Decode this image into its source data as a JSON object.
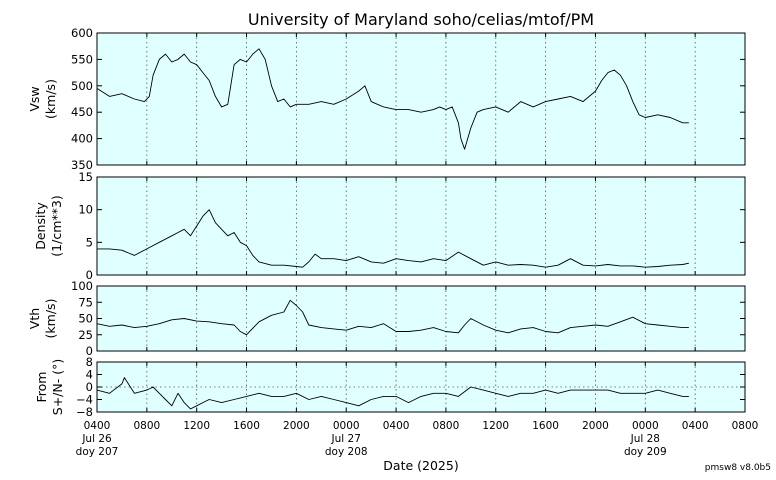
{
  "title": "University of Maryland  soho/celias/mtof/PM",
  "xlabel": "Date (2025)",
  "footer": "pmsw8 v8.0b5",
  "colors": {
    "panel_bg": "#e0ffff",
    "line": "#000000",
    "grid": "#555555"
  },
  "x_ticks": [
    {
      "t": 0,
      "lines": [
        "0400",
        "Jul 26",
        "doy 207"
      ]
    },
    {
      "t": 4,
      "lines": [
        "0800"
      ]
    },
    {
      "t": 8,
      "lines": [
        "1200"
      ]
    },
    {
      "t": 12,
      "lines": [
        "1600"
      ]
    },
    {
      "t": 16,
      "lines": [
        "2000"
      ]
    },
    {
      "t": 20,
      "lines": [
        "0000",
        "Jul 27",
        "doy 208"
      ]
    },
    {
      "t": 24,
      "lines": [
        "0400"
      ]
    },
    {
      "t": 28,
      "lines": [
        "0800"
      ]
    },
    {
      "t": 32,
      "lines": [
        "1200"
      ]
    },
    {
      "t": 36,
      "lines": [
        "1600"
      ]
    },
    {
      "t": 40,
      "lines": [
        "2000"
      ]
    },
    {
      "t": 44,
      "lines": [
        "0000",
        "Jul 28",
        "doy 209"
      ]
    },
    {
      "t": 48,
      "lines": [
        "0400"
      ]
    },
    {
      "t": 52,
      "lines": [
        "0800"
      ]
    }
  ],
  "chart_data": [
    {
      "type": "line",
      "id": "vsw",
      "ylabel": [
        "Vsw",
        "(km/s)"
      ],
      "ylim": [
        350,
        600
      ],
      "yticks": [
        350,
        400,
        450,
        500,
        550,
        600
      ],
      "xlim_hours_from_0400_jul26": [
        0,
        52
      ],
      "grid": "dotted vertical",
      "x": [
        0,
        1,
        2,
        3,
        3.8,
        4.2,
        4.5,
        5,
        5.5,
        6,
        6.5,
        7,
        7.5,
        8,
        8.5,
        9,
        9.5,
        10,
        10.5,
        11,
        11.5,
        12,
        12.5,
        13,
        13.5,
        14,
        14.5,
        15,
        15.5,
        16,
        17,
        18,
        19,
        20,
        21,
        21.5,
        22,
        22.5,
        23,
        24,
        25,
        26,
        27,
        27.5,
        28,
        28.5,
        29,
        29.2,
        29.5,
        30,
        30.5,
        31,
        32,
        33,
        34,
        35,
        36,
        37,
        38,
        39,
        40,
        40.5,
        41,
        41.5,
        42,
        42.5,
        43,
        43.5,
        44,
        45,
        46,
        47,
        47.5
      ],
      "values": [
        495,
        480,
        485,
        475,
        470,
        480,
        520,
        550,
        560,
        545,
        550,
        560,
        545,
        540,
        525,
        510,
        480,
        460,
        465,
        540,
        550,
        545,
        560,
        570,
        550,
        500,
        470,
        475,
        460,
        465,
        465,
        470,
        465,
        475,
        490,
        500,
        470,
        465,
        460,
        455,
        455,
        450,
        455,
        460,
        455,
        460,
        430,
        400,
        380,
        420,
        450,
        455,
        460,
        450,
        470,
        460,
        470,
        475,
        480,
        470,
        490,
        510,
        525,
        530,
        520,
        500,
        470,
        445,
        440,
        445,
        440,
        430,
        430
      ]
    },
    {
      "type": "line",
      "id": "density",
      "ylabel": [
        "Density",
        "(1/cm**3)"
      ],
      "ylim": [
        0,
        15
      ],
      "yticks": [
        0,
        5,
        10,
        15
      ],
      "xlim_hours_from_0400_jul26": [
        0,
        52
      ],
      "grid": "dotted vertical",
      "x": [
        0,
        1,
        2,
        3,
        4,
        5,
        6,
        6.5,
        7,
        7.5,
        8,
        8.5,
        9,
        9.5,
        10,
        10.5,
        11,
        11.5,
        12,
        12.5,
        13,
        14,
        15,
        16,
        16.5,
        17,
        17.5,
        18,
        19,
        20,
        21,
        22,
        23,
        24,
        25,
        26,
        27,
        28,
        29,
        30,
        31,
        32,
        33,
        34,
        35,
        36,
        37,
        38,
        39,
        40,
        41,
        42,
        43,
        44,
        45,
        46,
        47,
        47.5
      ],
      "values": [
        4,
        4,
        3.8,
        3,
        4,
        5,
        6,
        6.5,
        7,
        6,
        7.5,
        9,
        10,
        8,
        7,
        6,
        6.5,
        5,
        4.5,
        3,
        2,
        1.5,
        1.5,
        1.3,
        1.2,
        2,
        3.2,
        2.5,
        2.5,
        2.2,
        2.8,
        2,
        1.8,
        2.5,
        2.2,
        2,
        2.5,
        2.2,
        3.5,
        2.5,
        1.5,
        2,
        1.5,
        1.6,
        1.5,
        1.2,
        1.5,
        2.5,
        1.5,
        1.4,
        1.6,
        1.4,
        1.4,
        1.2,
        1.3,
        1.5,
        1.6,
        1.8
      ]
    },
    {
      "type": "line",
      "id": "vth",
      "ylabel": [
        "Vth",
        "(km/s)"
      ],
      "ylim": [
        0,
        100
      ],
      "yticks": [
        0,
        25,
        50,
        75,
        100
      ],
      "xlim_hours_from_0400_jul26": [
        0,
        52
      ],
      "grid": "dotted vertical",
      "x": [
        0,
        1,
        2,
        3,
        4,
        5,
        6,
        7,
        8,
        9,
        10,
        11,
        11.5,
        12,
        13,
        14,
        15,
        15.5,
        16,
        16.5,
        17,
        18,
        19,
        20,
        21,
        22,
        23,
        24,
        25,
        26,
        27,
        28,
        29,
        29.5,
        30,
        31,
        32,
        33,
        34,
        35,
        36,
        37,
        38,
        39,
        40,
        41,
        42,
        43,
        44,
        45,
        46,
        47,
        47.5
      ],
      "values": [
        42,
        38,
        40,
        36,
        38,
        42,
        48,
        50,
        46,
        45,
        42,
        40,
        30,
        25,
        45,
        55,
        60,
        78,
        70,
        60,
        40,
        36,
        34,
        32,
        38,
        36,
        42,
        30,
        30,
        32,
        36,
        30,
        28,
        40,
        50,
        40,
        32,
        28,
        34,
        36,
        30,
        28,
        36,
        38,
        40,
        38,
        45,
        52,
        42,
        40,
        38,
        36,
        36
      ]
    },
    {
      "type": "line",
      "id": "from",
      "ylabel": [
        "From",
        "S+/N- (°)"
      ],
      "ylim": [
        -8,
        8
      ],
      "yticks": [
        -8,
        -4,
        0,
        4,
        8
      ],
      "ytick_labels": [
        "−8",
        "−4",
        "0",
        "4",
        "8"
      ],
      "zero_line": true,
      "xlim_hours_from_0400_jul26": [
        0,
        52
      ],
      "grid": "dotted vertical",
      "x": [
        0,
        1,
        2,
        2.2,
        3,
        4,
        4.5,
        5,
        5.5,
        6,
        6.5,
        7,
        7.5,
        8,
        8.5,
        9,
        10,
        11,
        12,
        13,
        14,
        15,
        16,
        17,
        18,
        19,
        20,
        21,
        22,
        23,
        24,
        25,
        26,
        27,
        28,
        29,
        30,
        31,
        32,
        33,
        34,
        35,
        36,
        37,
        38,
        39,
        40,
        41,
        42,
        43,
        44,
        45,
        46,
        47,
        47.5
      ],
      "values": [
        -1,
        -2,
        1,
        3,
        -2,
        -1,
        0,
        -2,
        -4,
        -6,
        -2,
        -5,
        -7,
        -6,
        -5,
        -4,
        -5,
        -4,
        -3,
        -2,
        -3,
        -3,
        -2,
        -4,
        -3,
        -4,
        -5,
        -6,
        -4,
        -3,
        -3,
        -5,
        -3,
        -2,
        -2,
        -3,
        0,
        -1,
        -2,
        -3,
        -2,
        -2,
        -1,
        -2,
        -1,
        -1,
        -1,
        -1,
        -2,
        -2,
        -2,
        -1,
        -2,
        -3,
        -3
      ]
    }
  ]
}
